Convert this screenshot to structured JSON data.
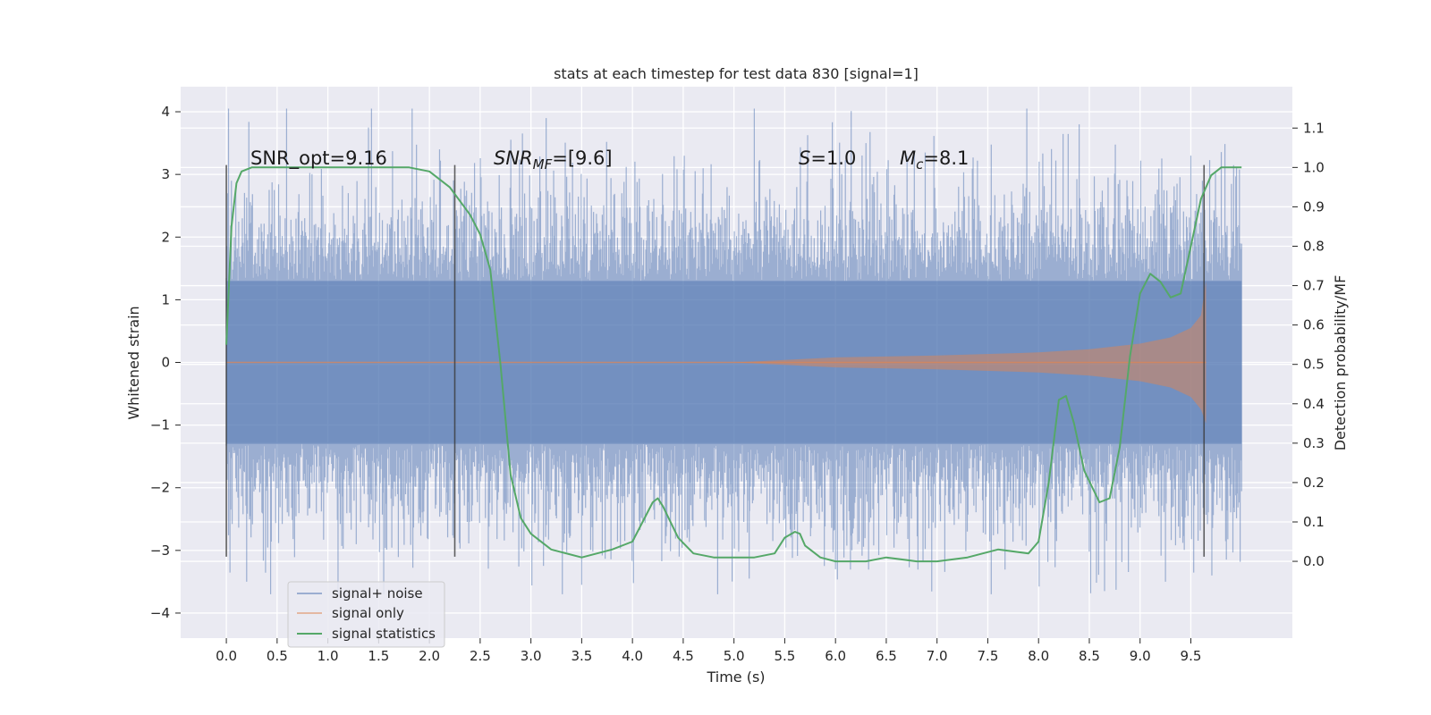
{
  "chart_data": {
    "type": "line",
    "title": "stats at each timestep for test data 830 [signal=1]",
    "xlabel": "Time (s)",
    "ylabel_left": "Whitened strain",
    "ylabel_right": "Detection probability/MF",
    "xlim": [
      -0.45,
      10.5
    ],
    "ylim_left": [
      -4.4,
      4.4
    ],
    "ylim_right": [
      -0.195,
      1.205
    ],
    "x_ticks": [
      "0.0",
      "0.5",
      "1.0",
      "1.5",
      "2.0",
      "2.5",
      "3.0",
      "3.5",
      "4.0",
      "4.5",
      "5.0",
      "5.5",
      "6.0",
      "6.5",
      "7.0",
      "7.5",
      "8.0",
      "8.5",
      "9.0",
      "9.5"
    ],
    "y_left_ticks": [
      "4",
      "3",
      "2",
      "1",
      "0",
      "−1",
      "−2",
      "−3",
      "−4"
    ],
    "y_right_ticks": [
      "1.1",
      "1.0",
      "0.9",
      "0.8",
      "0.7",
      "0.6",
      "0.5",
      "0.4",
      "0.3",
      "0.2",
      "0.1",
      "0.0"
    ],
    "grid": true,
    "legend_position": "lower-left",
    "annotations": {
      "snr_opt": "SNR_opt=9.16",
      "snr_mf_main": "SNR",
      "snr_mf_sub": "MF",
      "snr_mf_value": "=[9.6]",
      "s_main": "S",
      "s_value": "=1.0",
      "mc_main": "M",
      "mc_sub": "c",
      "mc_value": "=8.1"
    },
    "vertical_markers": [
      0.0,
      2.25,
      9.63
    ],
    "series": [
      {
        "name": "signal+ noise",
        "color": "#4c72b0",
        "kind": "noise-envelope",
        "x_range": [
          0.0,
          10.0
        ],
        "typical_amplitude": 1.3,
        "peak_amplitude": 4.05
      },
      {
        "name": "signal only",
        "color": "#dd8452",
        "kind": "chirp-envelope",
        "x": [
          0.0,
          5.0,
          6.0,
          7.0,
          8.0,
          8.5,
          9.0,
          9.3,
          9.5,
          9.6,
          9.65
        ],
        "envelope": [
          0.0,
          0.0,
          0.08,
          0.11,
          0.16,
          0.21,
          0.3,
          0.4,
          0.55,
          0.75,
          1.3
        ]
      },
      {
        "name": "signal statistics",
        "color": "#55a868",
        "kind": "line",
        "x": [
          0.0,
          0.05,
          0.1,
          0.15,
          0.25,
          0.5,
          1.0,
          1.5,
          1.8,
          2.0,
          2.2,
          2.4,
          2.5,
          2.6,
          2.7,
          2.8,
          2.9,
          3.0,
          3.2,
          3.5,
          3.8,
          4.0,
          4.1,
          4.2,
          4.25,
          4.3,
          4.45,
          4.6,
          4.8,
          5.0,
          5.2,
          5.4,
          5.5,
          5.6,
          5.65,
          5.7,
          5.85,
          6.0,
          6.3,
          6.5,
          6.8,
          7.0,
          7.3,
          7.6,
          7.9,
          8.0,
          8.1,
          8.2,
          8.27,
          8.35,
          8.45,
          8.6,
          8.7,
          8.8,
          8.9,
          9.0,
          9.1,
          9.2,
          9.3,
          9.4,
          9.5,
          9.6,
          9.7,
          9.8,
          9.9,
          10.0
        ],
        "y": [
          0.55,
          0.85,
          0.96,
          0.99,
          1.0,
          1.0,
          1.0,
          1.0,
          1.0,
          0.99,
          0.95,
          0.88,
          0.83,
          0.74,
          0.5,
          0.22,
          0.11,
          0.07,
          0.03,
          0.01,
          0.03,
          0.05,
          0.1,
          0.15,
          0.16,
          0.14,
          0.06,
          0.02,
          0.01,
          0.01,
          0.01,
          0.02,
          0.06,
          0.075,
          0.07,
          0.04,
          0.01,
          0.0,
          0.0,
          0.01,
          0.0,
          0.0,
          0.01,
          0.03,
          0.02,
          0.05,
          0.2,
          0.41,
          0.42,
          0.35,
          0.23,
          0.15,
          0.16,
          0.29,
          0.52,
          0.68,
          0.73,
          0.71,
          0.67,
          0.68,
          0.8,
          0.92,
          0.98,
          1.0,
          1.0,
          1.0
        ]
      }
    ]
  }
}
